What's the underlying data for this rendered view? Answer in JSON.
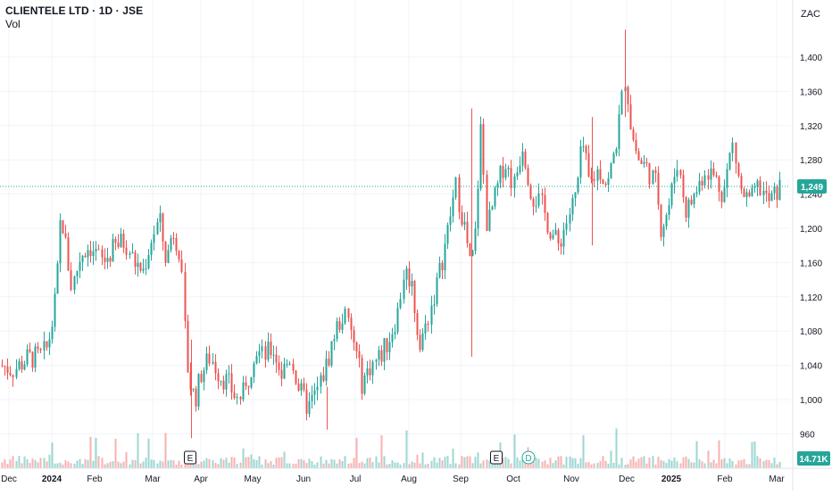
{
  "header": {
    "title": "CLIENTELE LTD · 1D · JSE",
    "volume_label": "Vol"
  },
  "axis": {
    "currency": "ZAC",
    "ticks": [
      "1,400",
      "1,360",
      "1,320",
      "1,280",
      "1,240",
      "1,200",
      "1,160",
      "1,120",
      "1,080",
      "1,040",
      "1,000",
      "960"
    ],
    "price_marker": "1,249",
    "volume_marker": "14.71K"
  },
  "time_axis": [
    "Dec",
    "2024",
    "Feb",
    "Mar",
    "Apr",
    "May",
    "Jun",
    "Jul",
    "Aug",
    "Sep",
    "Oct",
    "Nov",
    "Dec",
    "2025",
    "Feb",
    "Mar"
  ],
  "events": [
    {
      "label": "E",
      "type": "earnings"
    },
    {
      "label": "E",
      "type": "earnings"
    },
    {
      "label": "D",
      "type": "dividend"
    }
  ],
  "colors": {
    "up": "#26a69a",
    "down": "#ef5350",
    "grid": "#f0f3fa",
    "axis_text": "#131722",
    "marker": "#26a69a"
  },
  "chart_data": {
    "type": "candlestick",
    "symbol": "CLIENTELE LTD",
    "interval": "1D",
    "exchange": "JSE",
    "currency": "ZAC",
    "ylim": [
      940,
      1440
    ],
    "last_price": 1249,
    "last_volume": "14.71K",
    "month_closes": [
      {
        "month": "Dec 2023",
        "close": 1050
      },
      {
        "month": "Jan 2024",
        "close": 1180
      },
      {
        "month": "Feb 2024",
        "close": 1170
      },
      {
        "month": "Mar 2024",
        "close": 1120
      },
      {
        "month": "Apr 2024",
        "close": 1020
      },
      {
        "month": "May 2024",
        "close": 1040
      },
      {
        "month": "Jun 2024",
        "close": 1050
      },
      {
        "month": "Jul 2024",
        "close": 1050
      },
      {
        "month": "Aug 2024",
        "close": 1160
      },
      {
        "month": "Sep 2024",
        "close": 1240
      },
      {
        "month": "Oct 2024",
        "close": 1180
      },
      {
        "month": "Nov 2024",
        "close": 1270
      },
      {
        "month": "Dec 2024",
        "close": 1270
      },
      {
        "month": "Jan 2025",
        "close": 1220
      },
      {
        "month": "Feb 2025",
        "close": 1240
      },
      {
        "month": "Mar 2025",
        "close": 1249
      }
    ]
  }
}
